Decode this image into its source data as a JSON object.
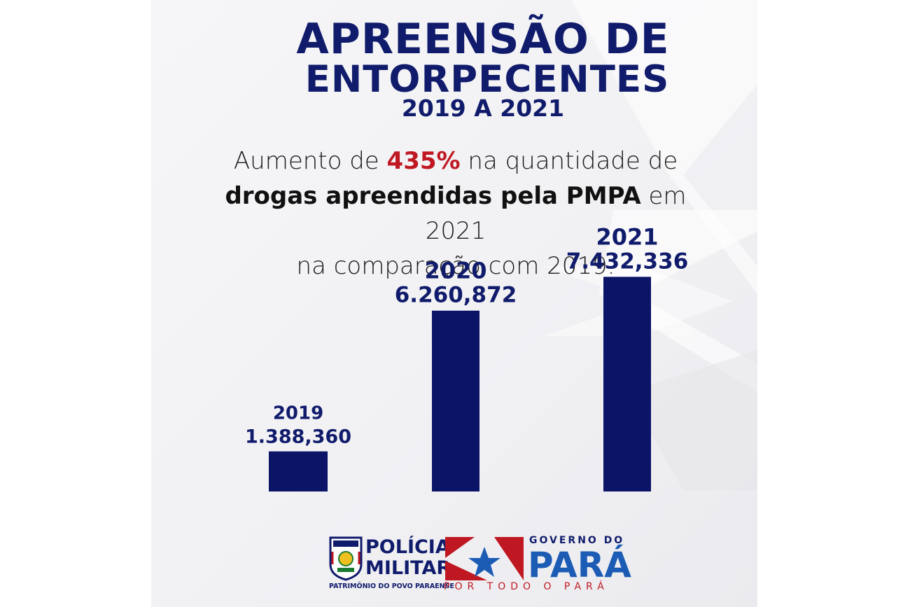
{
  "header": {
    "title_line1": "APREENSÃO DE",
    "title_line2": "ENTORPECENTES",
    "period": "2019 A 2021"
  },
  "subtitle": {
    "part1": "Aumento de ",
    "highlight": "435%",
    "part2": " na quantidade de",
    "bold": "drogas apreendidas pela PMPA",
    "part3": " em 2021",
    "part4": "na comparação com 2019."
  },
  "chart_data": {
    "type": "bar",
    "categories": [
      "2019",
      "2020",
      "2021"
    ],
    "values": [
      1388360,
      6260872,
      7432336
    ],
    "value_labels": [
      "1.388,360",
      "6.260,872",
      "7.432,336"
    ],
    "title": "APREENSÃO DE ENTORPECENTES 2019 A 2021",
    "xlabel": "",
    "ylabel": "",
    "ylim": [
      0,
      8000000
    ],
    "grid": false,
    "legend": "none",
    "bar_color": "#0b1466"
  },
  "footer": {
    "pm_line1": "POLÍCIA",
    "pm_line2": "MILITAR",
    "pm_tagline": "PATRIMÔNIO DO POVO PARAENSE",
    "gov_line1": "GOVERNO DO",
    "gov_line2": "PARÁ",
    "gov_tagline": "POR TODO O PARÁ"
  },
  "colors": {
    "navy": "#101b6b",
    "bar": "#0b1466",
    "red": "#c01822",
    "blue": "#1c5cb4"
  }
}
